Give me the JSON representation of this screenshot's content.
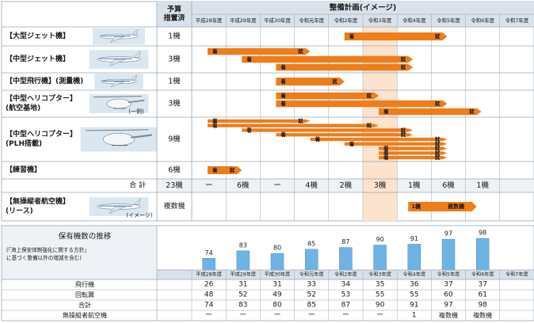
{
  "chart_data": {
    "type": "table",
    "header": {
      "budget_col": "予算\n措置済",
      "plan_col": "整備計画(イメージ)"
    },
    "years": [
      "平成28年度",
      "平成29年度",
      "平成30年度",
      "令和元年度",
      "令和2年度",
      "令和3年度",
      "令和4年度",
      "令和5年度",
      "令和6年度",
      "令和7年度"
    ],
    "highlight_year": "令和3年度",
    "bar_labels": {
      "start": "着",
      "end": "就"
    },
    "note_example": "(一例)",
    "note_image": "(イメージ)",
    "aircraft": [
      {
        "label": "【大型ジェット機】",
        "count": "1機",
        "bars": [
          {
            "start": 4,
            "end": 7
          }
        ]
      },
      {
        "label": "【中型ジェット機】",
        "count": "3機",
        "bars": [
          {
            "start": 0,
            "end": 3
          },
          {
            "start": 1,
            "end": 6
          },
          {
            "start": 2,
            "end": 6
          }
        ]
      },
      {
        "label": "【中型飛行機】(測量機)",
        "count": "1機",
        "bars": [
          {
            "start": 2,
            "end": 4
          }
        ]
      },
      {
        "label": "【中型ヘリコプター】\n(航空基地)",
        "count": "3機",
        "bars": [
          {
            "start": 2,
            "end": 5
          },
          {
            "start": 2,
            "end": 7
          },
          {
            "start": 5,
            "end": 8
          }
        ]
      },
      {
        "label": "【中型ヘリコプター】\n(PLH搭載)",
        "count": "9機",
        "bars": [
          {
            "start": 0,
            "end": 3
          },
          {
            "start": 0,
            "end": 5
          },
          {
            "start": 1,
            "end": 6
          },
          {
            "start": 2,
            "end": 6
          },
          {
            "start": 3,
            "end": 7
          },
          {
            "start": 4,
            "end": 7
          },
          {
            "start": 5,
            "end": 7
          },
          {
            "start": 5,
            "end": 7
          },
          {
            "start": 5,
            "end": 7
          }
        ]
      },
      {
        "label": "【練習機】",
        "count": "6機",
        "bars": [
          {
            "start": 0,
            "end": 1
          }
        ]
      }
    ],
    "total": {
      "label": "合 計",
      "budget": "23機",
      "values": [
        "ー",
        "6機",
        "ー",
        "4機",
        "2機",
        "3機",
        "1機",
        "6機",
        "1機",
        ""
      ]
    },
    "uav": {
      "label": "【無操縦者航空機】\n(リース)",
      "count": "複数機",
      "bar": {
        "start": 6,
        "end": 8,
        "start_label": "1機",
        "end_label": "複数機"
      }
    },
    "fleet": {
      "title": "保有機数の推移",
      "note": "(「海上保安体制強化に関する方針」\nに基づく整備以外の増減を含む)",
      "bar_values": [
        74,
        83,
        80,
        85,
        87,
        90,
        91,
        97,
        98
      ],
      "rows": [
        {
          "label": "飛行機",
          "values": [
            "26",
            "31",
            "31",
            "33",
            "34",
            "35",
            "36",
            "37",
            "37",
            ""
          ]
        },
        {
          "label": "回転翼",
          "values": [
            "48",
            "52",
            "49",
            "52",
            "53",
            "55",
            "55",
            "60",
            "61",
            ""
          ]
        },
        {
          "label": "合計",
          "values": [
            "74",
            "83",
            "80",
            "85",
            "87",
            "90",
            "91",
            "97",
            "98",
            ""
          ]
        },
        {
          "label": "無操縦者航空機",
          "values": [
            "ー",
            "ー",
            "ー",
            "ー",
            "ー",
            "ー",
            "1",
            "複数機",
            "複数機",
            ""
          ]
        }
      ]
    },
    "colors": {
      "orange": "#ef7d1a",
      "highlight": "#fce3cd",
      "header_bg": "#d9e1ea",
      "left_bg": "#eef1f5",
      "bar_blue": "#6fb3e4",
      "grid": "#9aa7b4"
    }
  }
}
